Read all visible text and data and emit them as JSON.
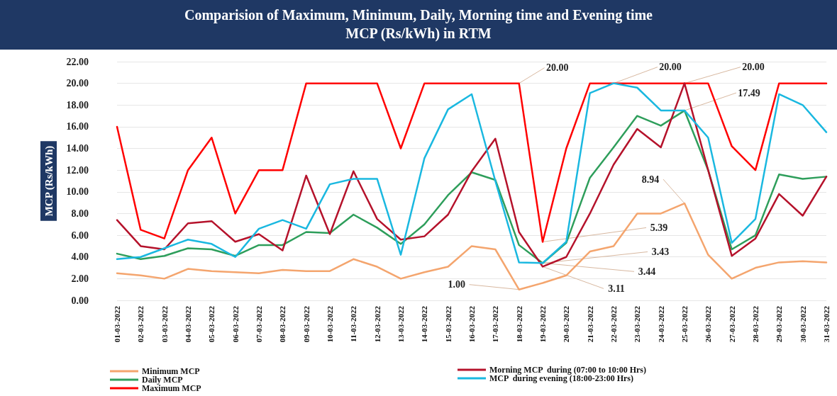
{
  "chart_data": {
    "type": "line",
    "title": "Comparision of Maximum, Minimum, Daily, Morning time and  Evening time\nMCP (Rs/kWh) in RTM",
    "ylabel": "MCP (Rs/kWh)",
    "categories": [
      "01-03-2022",
      "02-03-2022",
      "03-03-2022",
      "04-03-2022",
      "05-03-2022",
      "06-03-2022",
      "07-03-2022",
      "08-03-2022",
      "09-03-2022",
      "10-03-2022",
      "11-03-2022",
      "12-03-2022",
      "13-03-2022",
      "14-03-2022",
      "15-03-2022",
      "16-03-2022",
      "17-03-2022",
      "18-03-2022",
      "19-03-2022",
      "20-03-2022",
      "21-03-2022",
      "22-03-2022",
      "23-03-2022",
      "24-03-2022",
      "25-03-2022",
      "26-03-2022",
      "27-03-2022",
      "28-03-2022",
      "29-03-2022",
      "30-03-2022",
      "31-03-2022"
    ],
    "series": [
      {
        "name": "Minimum MCP",
        "color": "#f4a56e",
        "values": [
          2.5,
          2.3,
          2.0,
          2.9,
          2.7,
          2.6,
          2.5,
          2.8,
          2.7,
          2.7,
          3.8,
          3.1,
          2.0,
          2.6,
          3.1,
          5.0,
          4.7,
          1.0,
          1.6,
          2.3,
          4.5,
          5.0,
          8.0,
          8.0,
          8.94,
          4.2,
          2.0,
          3.0,
          3.5,
          3.6,
          3.5
        ]
      },
      {
        "name": "Daily MCP",
        "color": "#2e9e5b",
        "values": [
          4.3,
          3.8,
          4.1,
          4.8,
          4.7,
          4.1,
          5.1,
          5.1,
          6.3,
          6.2,
          7.9,
          6.7,
          5.2,
          7.0,
          9.7,
          11.8,
          11.1,
          5.1,
          3.43,
          5.3,
          11.3,
          14.1,
          17.0,
          16.1,
          17.49,
          12.0,
          4.7,
          6.0,
          11.6,
          11.2,
          11.4
        ]
      },
      {
        "name": "Maximum MCP",
        "color": "#ff0000",
        "values": [
          16.0,
          6.5,
          5.7,
          12.0,
          15.0,
          8.0,
          12.0,
          12.0,
          20.0,
          20.0,
          20.0,
          20.0,
          14.0,
          20.0,
          20.0,
          20.0,
          20.0,
          20.0,
          5.39,
          14.0,
          20.0,
          20.0,
          20.0,
          20.0,
          20.0,
          20.0,
          14.2,
          12.0,
          20.0,
          20.0,
          20.0
        ]
      },
      {
        "name": "Morning MCP  during (07:00 to 10:00 Hrs)",
        "color": "#b5122b",
        "values": [
          7.4,
          5.0,
          4.7,
          7.1,
          7.3,
          5.4,
          6.1,
          4.6,
          11.5,
          6.1,
          11.9,
          7.5,
          5.6,
          5.9,
          7.9,
          11.9,
          14.9,
          6.3,
          3.11,
          4.0,
          8.0,
          12.5,
          15.8,
          14.1,
          20.0,
          12.0,
          4.1,
          5.7,
          9.8,
          7.8,
          11.4
        ]
      },
      {
        "name": "MCP  during evening (18:00-23:00 Hrs)",
        "color": "#1ab8e0",
        "values": [
          3.8,
          4.0,
          4.8,
          5.6,
          5.2,
          4.0,
          6.6,
          7.4,
          6.6,
          10.7,
          11.2,
          11.2,
          4.2,
          13.1,
          17.6,
          19.0,
          11.0,
          3.5,
          3.44,
          5.4,
          19.1,
          20.0,
          19.6,
          17.5,
          17.5,
          15.0,
          5.3,
          7.5,
          19.0,
          18.0,
          15.5
        ]
      }
    ],
    "ylim": [
      0,
      22
    ],
    "yticks": [
      {
        "value": 0,
        "label": "0.00"
      },
      {
        "value": 2,
        "label": "2.00"
      },
      {
        "value": 4,
        "label": "4.00"
      },
      {
        "value": 6,
        "label": "6.00"
      },
      {
        "value": 8,
        "label": "8.00"
      },
      {
        "value": 10,
        "label": "10.00"
      },
      {
        "value": 12,
        "label": "12.00"
      },
      {
        "value": 14,
        "label": "14.00"
      },
      {
        "value": 16,
        "label": "16.00"
      },
      {
        "value": 18,
        "label": "18.00"
      },
      {
        "value": 20,
        "label": "20.00"
      },
      {
        "value": 22,
        "label": "22.00"
      }
    ],
    "annotations": [
      {
        "text": "20.00",
        "x": "18-03-2022",
        "y": 20
      },
      {
        "text": "20.00",
        "x": "22-03-2022",
        "y": 20
      },
      {
        "text": "20.00",
        "x": "25-03-2022",
        "y": 20
      },
      {
        "text": "17.49",
        "x": "25-03-2022",
        "y": 17.49
      },
      {
        "text": "8.94",
        "x": "25-03-2022",
        "y": 8.94
      },
      {
        "text": "5.39",
        "x": "19-03-2022",
        "y": 5.39
      },
      {
        "text": "3.43",
        "x": "19-03-2022",
        "y": 3.43
      },
      {
        "text": "3.44",
        "x": "19-03-2022",
        "y": 3.44
      },
      {
        "text": "3.11",
        "x": "19-03-2022",
        "y": 3.11
      },
      {
        "text": "1.00",
        "x": "18-03-2022",
        "y": 1.0
      }
    ],
    "grid": "y",
    "legend": "bottom"
  }
}
